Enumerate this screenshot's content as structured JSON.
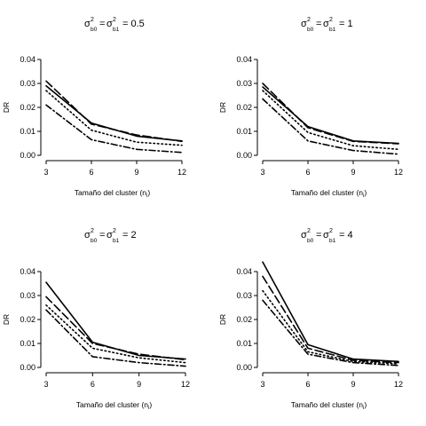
{
  "chart_data": [
    {
      "type": "line",
      "title": {
        "sym": "σ",
        "sup": "2",
        "sub0": "b0",
        "sub1": "b1",
        "eq": "=",
        "value": "= 0.5"
      },
      "xlabel": {
        "text": "Tamaño del cluster (n",
        "sub": "i",
        "close": ")"
      },
      "ylabel": "DR",
      "x": [
        3,
        6,
        9,
        12
      ],
      "xticks": [
        "3",
        "6",
        "9",
        "12"
      ],
      "xlim": [
        3,
        12
      ],
      "ylim": [
        0,
        0.04
      ],
      "yticks": [
        "0.00",
        "0.01",
        "0.02",
        "0.03",
        "0.04"
      ],
      "series": [
        {
          "style": "solid",
          "values": [
            0.029,
            0.0135,
            0.008,
            0.006
          ]
        },
        {
          "style": "longdash",
          "values": [
            0.031,
            0.013,
            0.0085,
            0.0058
          ]
        },
        {
          "style": "dotted",
          "values": [
            0.027,
            0.0105,
            0.0055,
            0.0042
          ]
        },
        {
          "style": "dotdash",
          "values": [
            0.021,
            0.0065,
            0.0025,
            0.0012
          ]
        }
      ]
    },
    {
      "type": "line",
      "title": {
        "sym": "σ",
        "sup": "2",
        "sub0": "b0",
        "sub1": "b1",
        "eq": "=",
        "value": "= 1"
      },
      "xlabel": {
        "text": "Tamaño del cluster (n",
        "sub": "i",
        "close": ")"
      },
      "ylabel": "DR",
      "x": [
        3,
        6,
        9,
        12
      ],
      "xticks": [
        "3",
        "6",
        "9",
        "12"
      ],
      "xlim": [
        3,
        12
      ],
      "ylim": [
        0,
        0.04
      ],
      "yticks": [
        "0.00",
        "0.01",
        "0.02",
        "0.03",
        "0.04"
      ],
      "series": [
        {
          "style": "solid",
          "values": [
            0.0285,
            0.012,
            0.006,
            0.005
          ]
        },
        {
          "style": "longdash",
          "values": [
            0.03,
            0.0115,
            0.0058,
            0.0048
          ]
        },
        {
          "style": "dotted",
          "values": [
            0.027,
            0.0095,
            0.004,
            0.0025
          ]
        },
        {
          "style": "dotdash",
          "values": [
            0.0235,
            0.006,
            0.002,
            0.0005
          ]
        }
      ]
    },
    {
      "type": "line",
      "title": {
        "sym": "σ",
        "sup": "2",
        "sub0": "b0",
        "sub1": "b1",
        "eq": "=",
        "value": "= 2"
      },
      "xlabel": {
        "text": "Tamaño del cluster (n",
        "sub": "i",
        "close": ")"
      },
      "ylabel": "DR",
      "x": [
        3,
        6,
        9,
        12
      ],
      "xticks": [
        "3",
        "6",
        "9",
        "12"
      ],
      "xlim": [
        3,
        12
      ],
      "ylim": [
        0,
        0.04
      ],
      "yticks": [
        "0.00",
        "0.01",
        "0.02",
        "0.03",
        "0.04"
      ],
      "series": [
        {
          "style": "solid",
          "values": [
            0.0355,
            0.0105,
            0.005,
            0.0035
          ]
        },
        {
          "style": "longdash",
          "values": [
            0.0295,
            0.01,
            0.0055,
            0.0032
          ]
        },
        {
          "style": "dotted",
          "values": [
            0.026,
            0.008,
            0.004,
            0.002
          ]
        },
        {
          "style": "dotdash",
          "values": [
            0.024,
            0.0045,
            0.002,
            0.0005
          ]
        }
      ]
    },
    {
      "type": "line",
      "title": {
        "sym": "σ",
        "sup": "2",
        "sub0": "b0",
        "sub1": "b1",
        "eq": "=",
        "value": "= 4"
      },
      "xlabel": {
        "text": "Tamaño del cluster (n",
        "sub": "i",
        "close": ")"
      },
      "ylabel": "DR",
      "x": [
        3,
        6,
        9,
        12
      ],
      "xticks": [
        "3",
        "6",
        "9",
        "12"
      ],
      "xlim": [
        3,
        12
      ],
      "ylim": [
        0,
        0.04
      ],
      "yticks": [
        "0.00",
        "0.01",
        "0.02",
        "0.03",
        "0.04"
      ],
      "series": [
        {
          "style": "solid",
          "values": [
            0.044,
            0.0095,
            0.0035,
            0.0025
          ]
        },
        {
          "style": "longdash",
          "values": [
            0.038,
            0.008,
            0.003,
            0.002
          ]
        },
        {
          "style": "dotted",
          "values": [
            0.032,
            0.0065,
            0.0025,
            0.0015
          ]
        },
        {
          "style": "dotdash",
          "values": [
            0.028,
            0.0055,
            0.002,
            0.0008
          ]
        }
      ]
    }
  ]
}
